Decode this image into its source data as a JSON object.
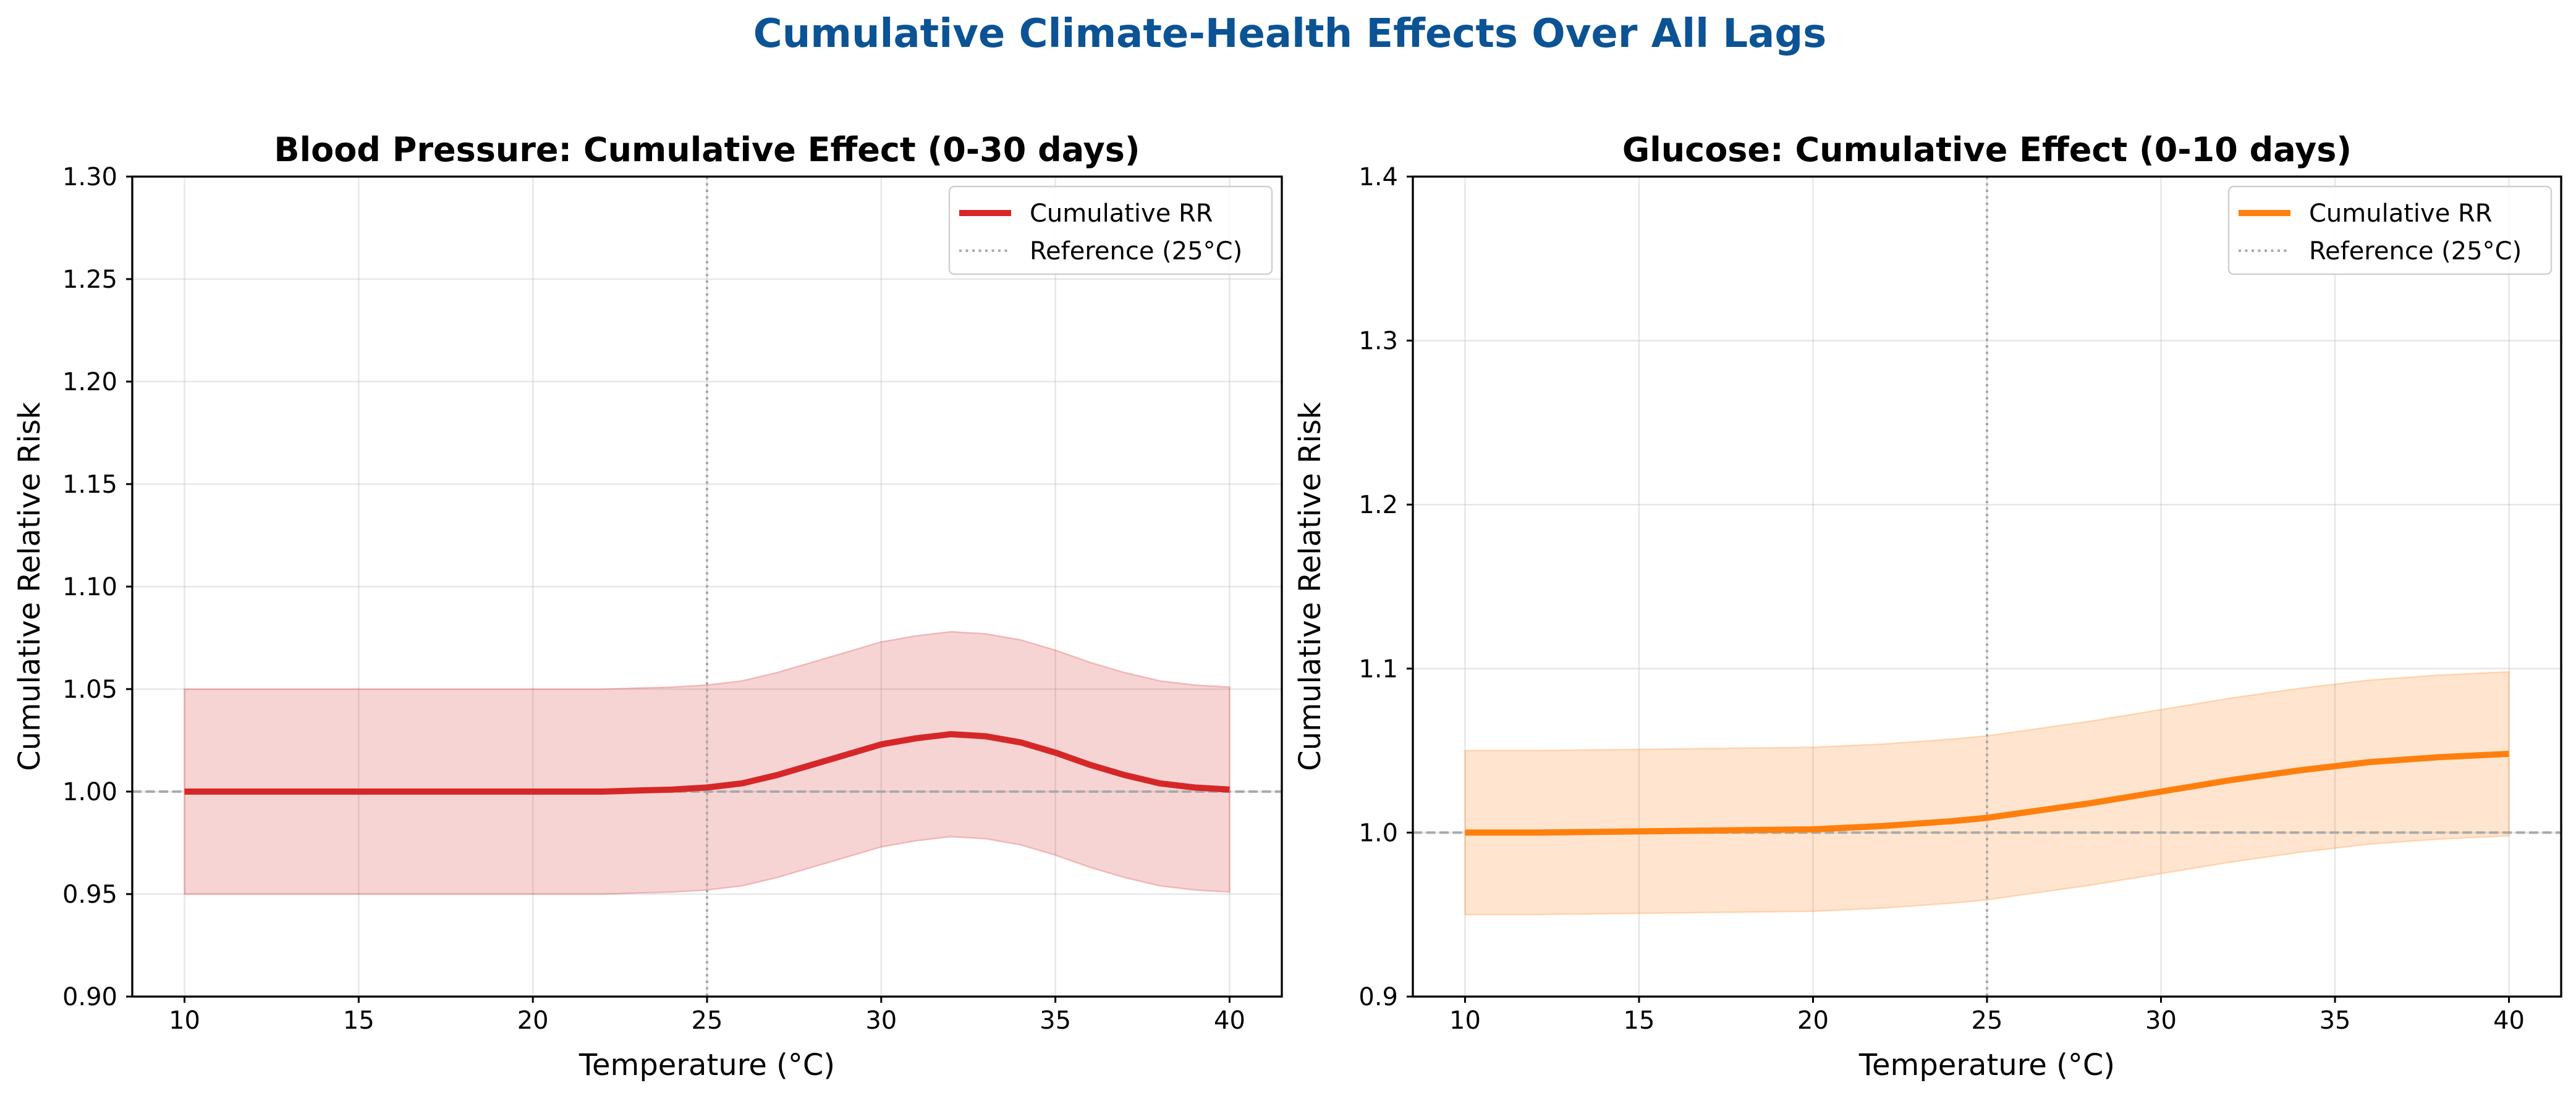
{
  "figure": {
    "suptitle": "Cumulative Climate-Health Effects Over All Lags",
    "suptitle_color": "#0b5394"
  },
  "chart_data": [
    {
      "type": "line",
      "title": "Blood Pressure: Cumulative Effect (0-30 days)",
      "xlabel": "Temperature (°C)",
      "ylabel": "Cumulative Relative Risk",
      "xlim": [
        8.5,
        41.5
      ],
      "ylim": [
        0.9,
        1.3
      ],
      "xticks": [
        10,
        15,
        20,
        25,
        30,
        35,
        40
      ],
      "xtick_labels": [
        "10",
        "15",
        "20",
        "25",
        "30",
        "35",
        "40"
      ],
      "yticks": [
        0.9,
        0.95,
        1.0,
        1.05,
        1.1,
        1.15,
        1.2,
        1.25,
        1.3
      ],
      "ytick_labels": [
        "0.90",
        "0.95",
        "1.00",
        "1.05",
        "1.10",
        "1.15",
        "1.20",
        "1.25",
        "1.30"
      ],
      "grid": true,
      "legend_position": "upper right",
      "reference_x": 25,
      "reference_y": 1.0,
      "series": [
        {
          "name": "Cumulative RR",
          "color": "#d62728",
          "x": [
            10,
            12,
            14,
            16,
            18,
            20,
            22,
            23,
            24,
            25,
            26,
            27,
            28,
            29,
            30,
            31,
            32,
            33,
            34,
            35,
            36,
            37,
            38,
            39,
            40
          ],
          "y": [
            1.0,
            1.0,
            1.0,
            1.0,
            1.0,
            1.0,
            1.0,
            1.0005,
            1.001,
            1.002,
            1.004,
            1.008,
            1.013,
            1.018,
            1.023,
            1.026,
            1.028,
            1.027,
            1.024,
            1.019,
            1.013,
            1.008,
            1.004,
            1.002,
            1.001
          ],
          "lower": [
            0.95,
            0.95,
            0.95,
            0.95,
            0.95,
            0.95,
            0.95,
            0.9505,
            0.951,
            0.952,
            0.954,
            0.958,
            0.963,
            0.968,
            0.973,
            0.976,
            0.978,
            0.977,
            0.974,
            0.969,
            0.963,
            0.958,
            0.954,
            0.952,
            0.951
          ],
          "upper": [
            1.05,
            1.05,
            1.05,
            1.05,
            1.05,
            1.05,
            1.05,
            1.0505,
            1.051,
            1.052,
            1.054,
            1.058,
            1.063,
            1.068,
            1.073,
            1.076,
            1.078,
            1.077,
            1.074,
            1.069,
            1.063,
            1.058,
            1.054,
            1.052,
            1.051
          ]
        }
      ],
      "reference_label": "Reference (25°C)"
    },
    {
      "type": "line",
      "title": "Glucose: Cumulative Effect (0-10 days)",
      "xlabel": "Temperature (°C)",
      "ylabel": "Cumulative Relative Risk",
      "xlim": [
        8.5,
        41.5
      ],
      "ylim": [
        0.9,
        1.4
      ],
      "xticks": [
        10,
        15,
        20,
        25,
        30,
        35,
        40
      ],
      "xtick_labels": [
        "10",
        "15",
        "20",
        "25",
        "30",
        "35",
        "40"
      ],
      "yticks": [
        0.9,
        1.0,
        1.1,
        1.2,
        1.3,
        1.4
      ],
      "ytick_labels": [
        "0.9",
        "1.0",
        "1.1",
        "1.2",
        "1.3",
        "1.4"
      ],
      "grid": true,
      "legend_position": "upper right",
      "reference_x": 25,
      "reference_y": 1.0,
      "series": [
        {
          "name": "Cumulative RR",
          "color": "#ff7f0e",
          "x": [
            10,
            12,
            14,
            16,
            18,
            20,
            22,
            24,
            25,
            26,
            28,
            30,
            32,
            34,
            36,
            38,
            40
          ],
          "y": [
            1.0,
            1.0,
            1.0005,
            1.001,
            1.0015,
            1.002,
            1.004,
            1.007,
            1.009,
            1.012,
            1.018,
            1.025,
            1.032,
            1.038,
            1.043,
            1.046,
            1.048
          ],
          "lower": [
            0.95,
            0.95,
            0.9505,
            0.951,
            0.9515,
            0.952,
            0.954,
            0.957,
            0.959,
            0.962,
            0.968,
            0.975,
            0.982,
            0.988,
            0.993,
            0.996,
            0.998
          ],
          "upper": [
            1.05,
            1.05,
            1.0505,
            1.051,
            1.0515,
            1.052,
            1.054,
            1.057,
            1.059,
            1.062,
            1.068,
            1.075,
            1.082,
            1.088,
            1.093,
            1.096,
            1.098
          ]
        }
      ],
      "reference_label": "Reference (25°C)"
    }
  ]
}
